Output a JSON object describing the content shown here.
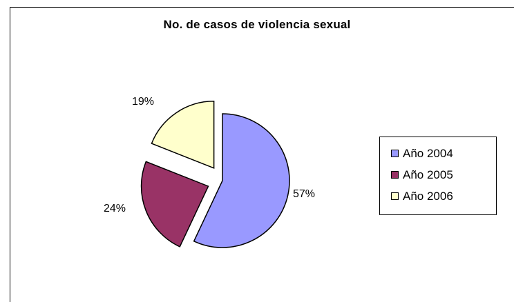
{
  "chart_data": {
    "type": "pie",
    "title": "No. de casos de violencia sexual",
    "categories": [
      "Año 2004",
      "Año 2005",
      "Año 2006"
    ],
    "values": [
      57,
      24,
      19
    ],
    "labels": [
      "57%",
      "24%",
      "19%"
    ],
    "colors": [
      "#9999FF",
      "#993366",
      "#FFFFCC"
    ],
    "exploded": true,
    "legend_position": "right"
  }
}
